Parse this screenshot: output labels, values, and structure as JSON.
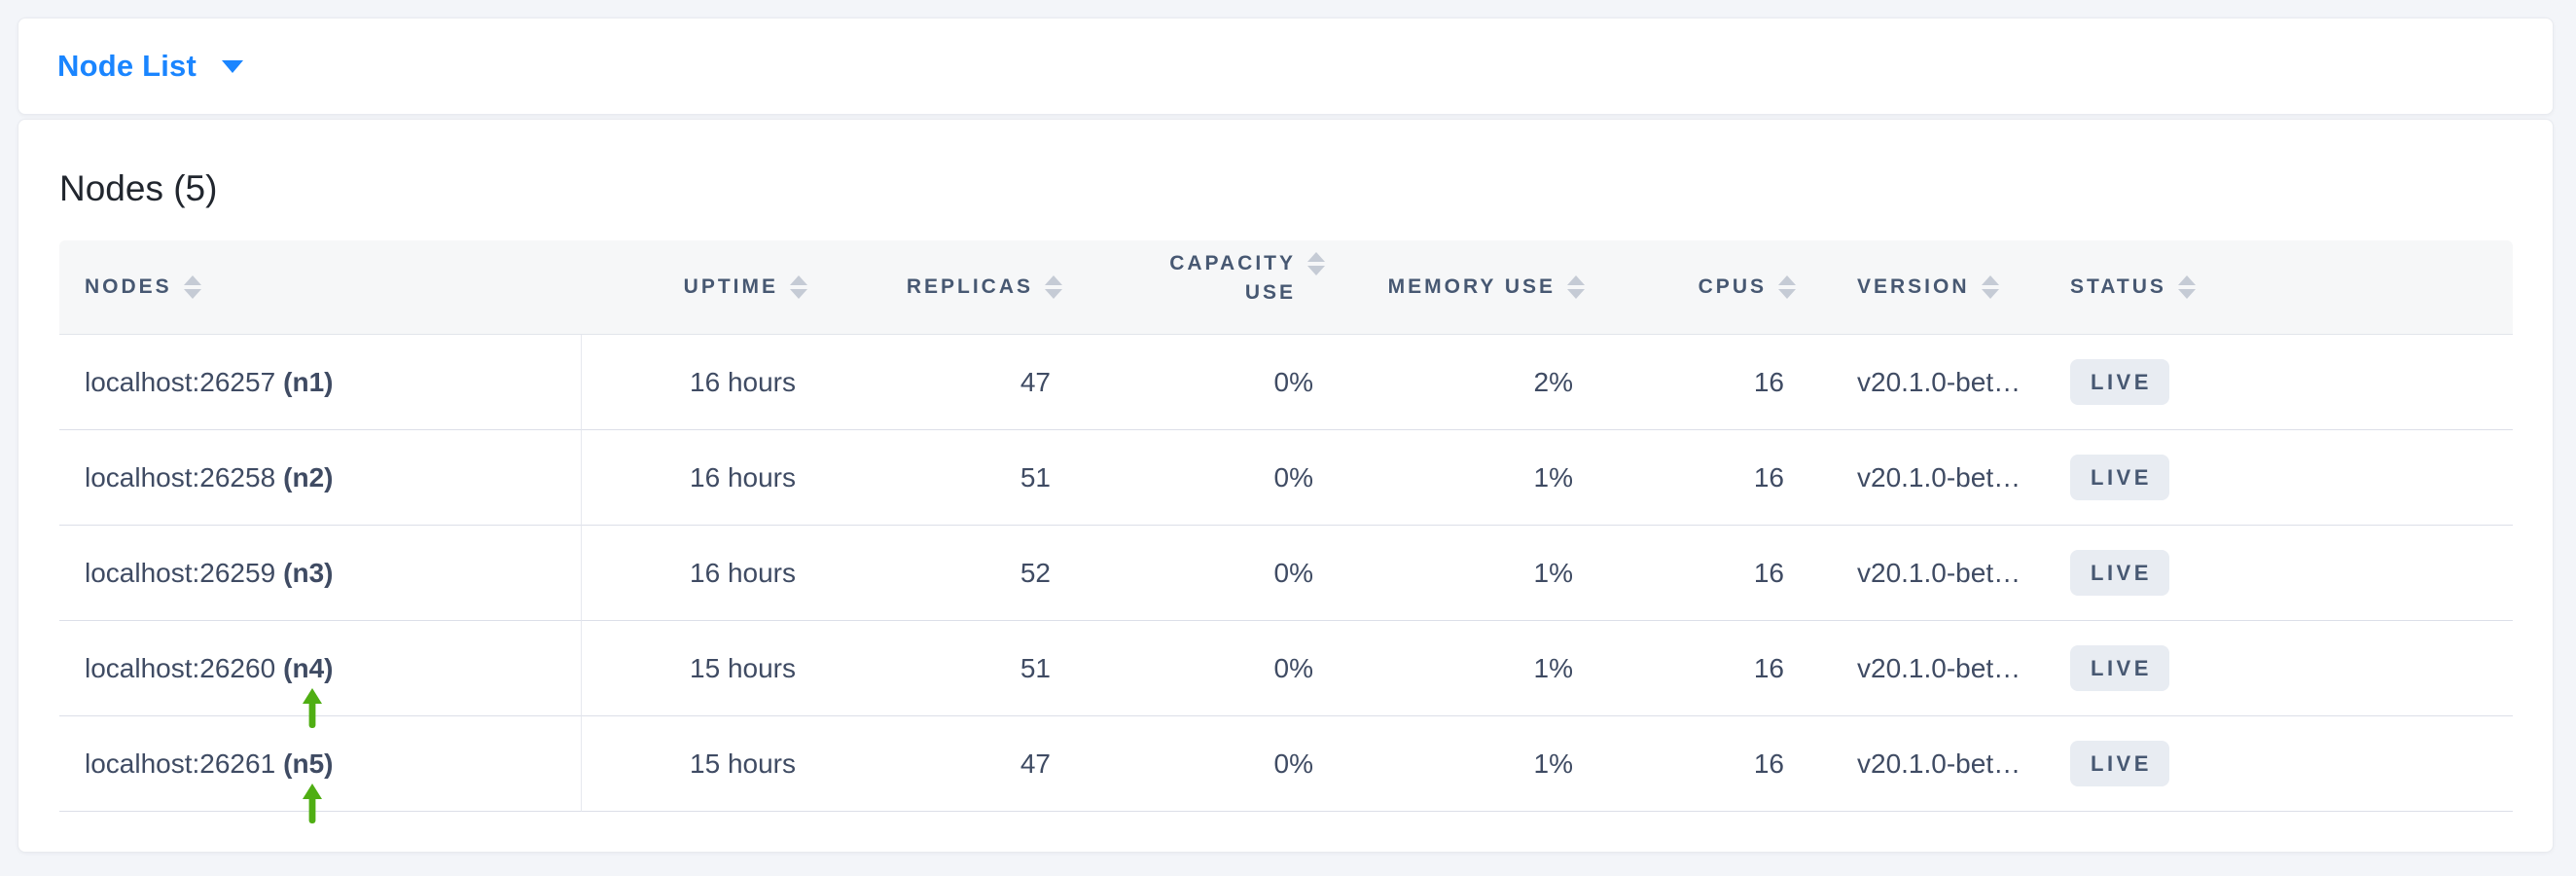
{
  "topbar": {
    "title": "Node List"
  },
  "main": {
    "heading": "Nodes (5)",
    "table": {
      "columns": [
        {
          "key": "nodes",
          "label": "NODES",
          "align": "left",
          "sortable": true
        },
        {
          "key": "uptime",
          "label": "UPTIME",
          "align": "right",
          "sortable": true
        },
        {
          "key": "replicas",
          "label": "REPLICAS",
          "align": "right",
          "sortable": true
        },
        {
          "key": "capacity_use",
          "label": "CAPACITY USE",
          "label_lines": [
            "CAPACITY",
            "USE"
          ],
          "align": "right",
          "sortable": true
        },
        {
          "key": "memory_use",
          "label": "MEMORY USE",
          "align": "right",
          "sortable": true
        },
        {
          "key": "cpus",
          "label": "CPUS",
          "align": "right",
          "sortable": true
        },
        {
          "key": "version",
          "label": "VERSION",
          "align": "left",
          "sortable": true
        },
        {
          "key": "status",
          "label": "STATUS",
          "align": "left",
          "sortable": true
        }
      ],
      "rows": [
        {
          "address": "localhost:26257",
          "node_id": "(n1)",
          "uptime": "16 hours",
          "replicas": "47",
          "capacity_use": "0%",
          "memory_use": "2%",
          "cpus": "16",
          "version": "v20.1.0-bet…",
          "status": "LIVE",
          "annotated": false
        },
        {
          "address": "localhost:26258",
          "node_id": "(n2)",
          "uptime": "16 hours",
          "replicas": "51",
          "capacity_use": "0%",
          "memory_use": "1%",
          "cpus": "16",
          "version": "v20.1.0-bet…",
          "status": "LIVE",
          "annotated": false
        },
        {
          "address": "localhost:26259",
          "node_id": "(n3)",
          "uptime": "16 hours",
          "replicas": "52",
          "capacity_use": "0%",
          "memory_use": "1%",
          "cpus": "16",
          "version": "v20.1.0-bet…",
          "status": "LIVE",
          "annotated": false
        },
        {
          "address": "localhost:26260",
          "node_id": "(n4)",
          "uptime": "15 hours",
          "replicas": "51",
          "capacity_use": "0%",
          "memory_use": "1%",
          "cpus": "16",
          "version": "v20.1.0-bet…",
          "status": "LIVE",
          "annotated": true
        },
        {
          "address": "localhost:26261",
          "node_id": "(n5)",
          "uptime": "15 hours",
          "replicas": "47",
          "capacity_use": "0%",
          "memory_use": "1%",
          "cpus": "16",
          "version": "v20.1.0-bet…",
          "status": "LIVE",
          "annotated": true
        }
      ]
    }
  },
  "icons": {
    "dropdown_caret": "caret-down-icon",
    "sort": "sort-arrows-icon",
    "annotation": "arrow-up-icon"
  },
  "colors": {
    "accent_blue": "#1a85ff",
    "annotation_green": "#4fae13",
    "live_badge_bg": "#e8ecf2",
    "live_badge_text": "#475872",
    "header_text": "#475872",
    "body_text": "#3f4b63"
  }
}
